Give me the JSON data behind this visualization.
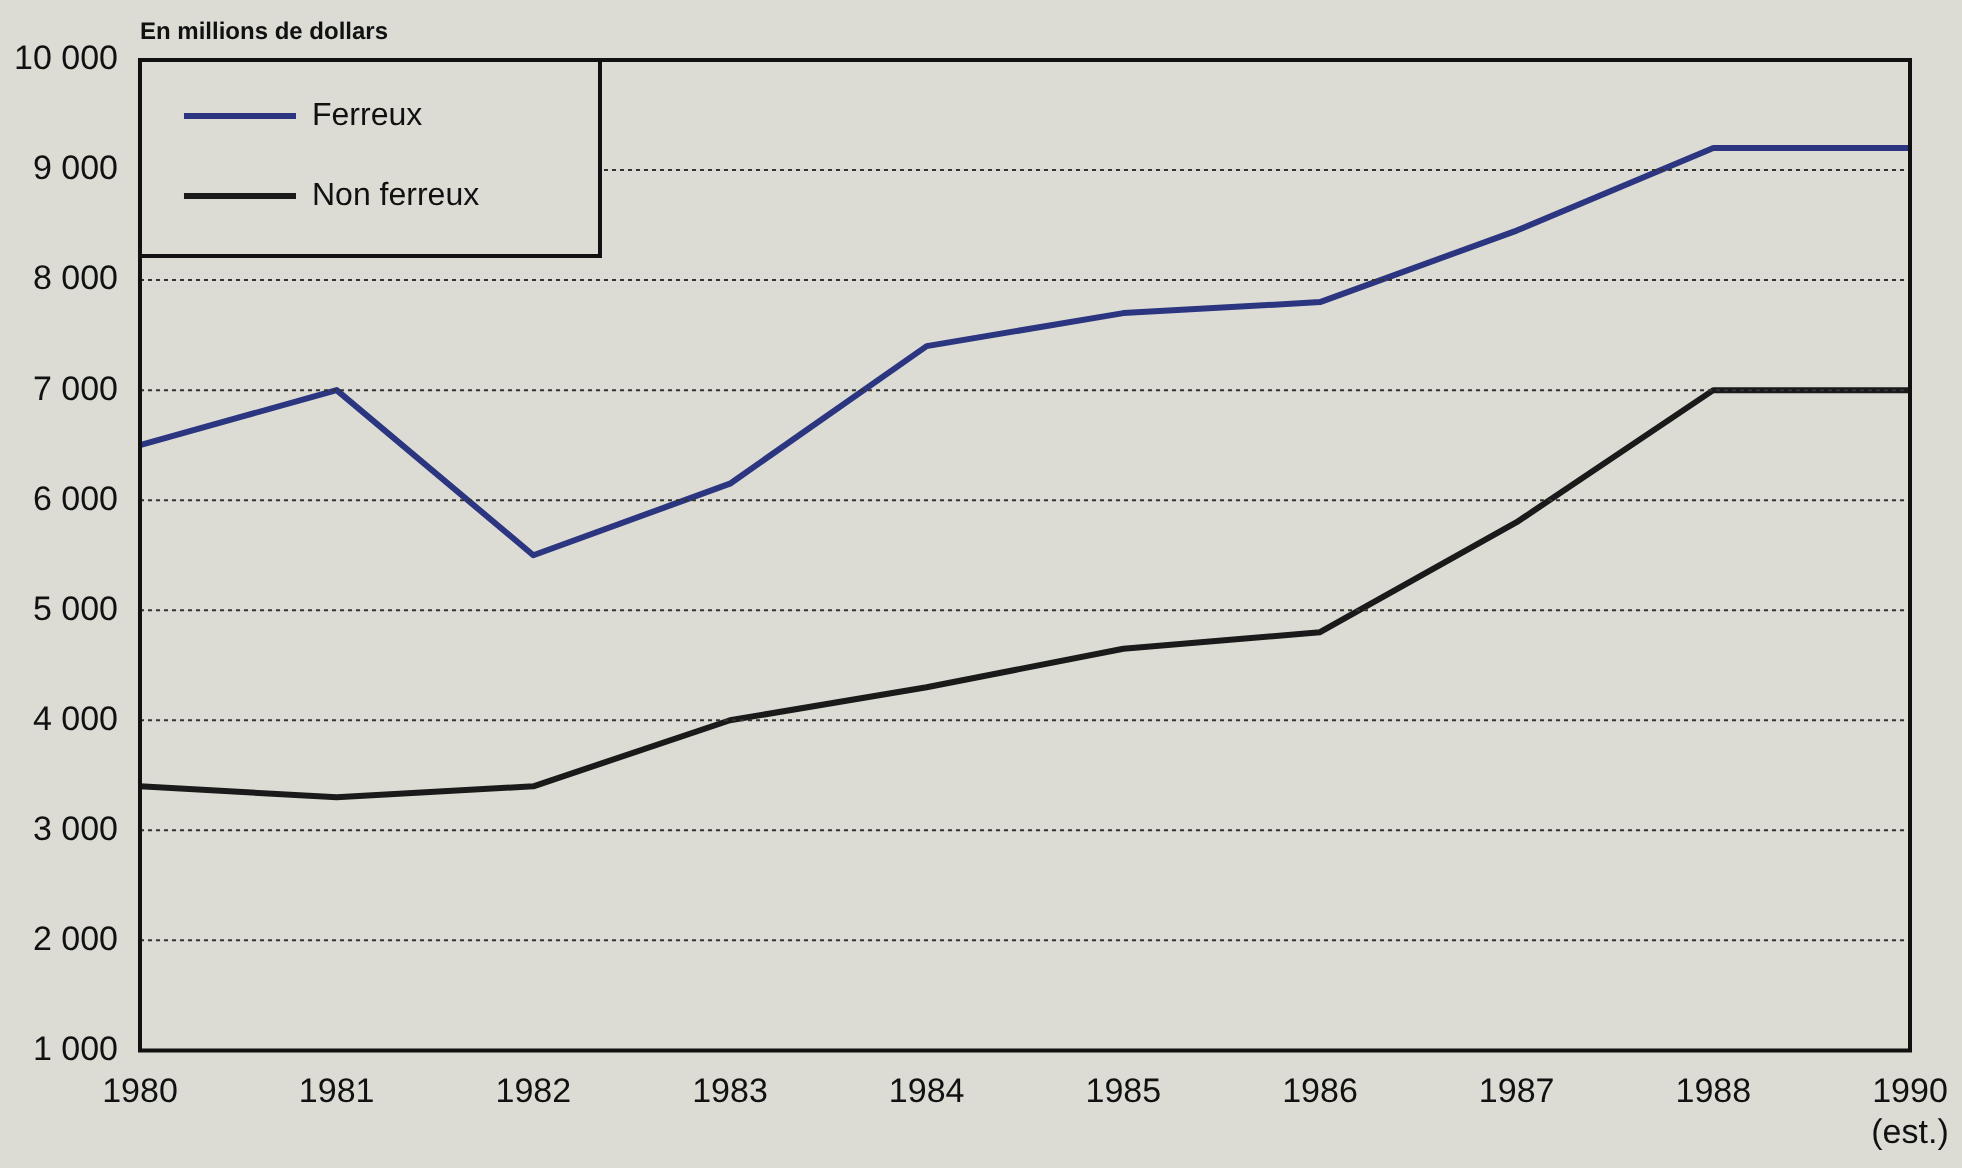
{
  "chart_data": {
    "type": "line",
    "ylabel": "En millions de dollars",
    "categories": [
      "1980",
      "1981",
      "1982",
      "1983",
      "1984",
      "1985",
      "1986",
      "1987",
      "1988",
      "1990\n(est.)"
    ],
    "series": [
      {
        "name": "Ferreux",
        "color": "#2b3580",
        "values": [
          6500,
          7000,
          5500,
          6150,
          7400,
          7700,
          7800,
          8450,
          9200,
          9200
        ]
      },
      {
        "name": "Non ferreux",
        "color": "#1a1a1a",
        "values": [
          3400,
          3300,
          3400,
          4000,
          4300,
          4650,
          4800,
          5800,
          7000,
          7000
        ]
      }
    ],
    "ylim": [
      1000,
      10000
    ],
    "yticks": [
      {
        "value": 1000,
        "label": "1 000"
      },
      {
        "value": 2000,
        "label": "2 000"
      },
      {
        "value": 3000,
        "label": "3 000"
      },
      {
        "value": 4000,
        "label": "4 000"
      },
      {
        "value": 5000,
        "label": "5 000"
      },
      {
        "value": 6000,
        "label": "6 000"
      },
      {
        "value": 7000,
        "label": "7 000"
      },
      {
        "value": 8000,
        "label": "8 000"
      },
      {
        "value": 9000,
        "label": "9 000"
      },
      {
        "value": 10000,
        "label": "10 000"
      }
    ],
    "grid": "y",
    "legend": "top left",
    "marker": "none",
    "line_style": "solid"
  }
}
